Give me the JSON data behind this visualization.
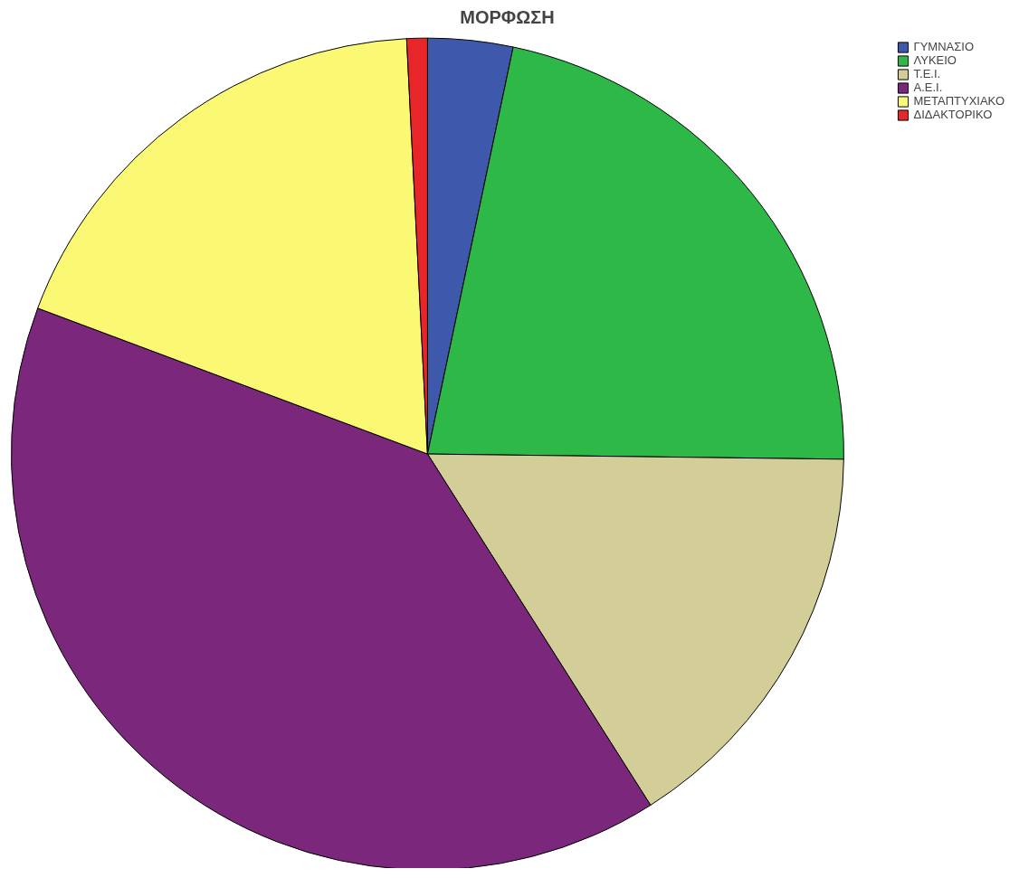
{
  "chart_data": {
    "type": "pie",
    "title": "ΜΟΡΦΩΣΗ",
    "categories": [
      "ΓΥΜΝΑΣΙΟ",
      "ΛΥΚΕΙΟ",
      "Τ.Ε.Ι.",
      "Α.Ε.Ι.",
      "ΜΕΤΑΠΤΥΧΙΑΚΟ",
      "ΔΙΔΑΚΤΟΡΙΚΟ"
    ],
    "values": [
      3.3,
      21.9,
      15.8,
      39.7,
      18.5,
      0.8
    ],
    "colors": [
      "#3e58ac",
      "#2eb848",
      "#d3ce97",
      "#7b277c",
      "#fbf873",
      "#e8262a"
    ],
    "legend": "top right"
  }
}
